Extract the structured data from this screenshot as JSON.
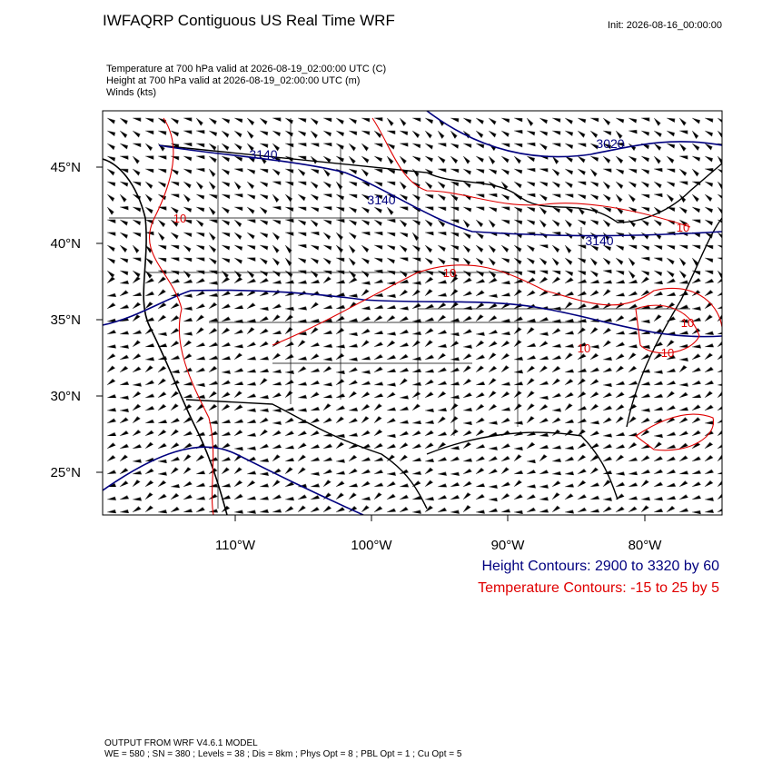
{
  "header": {
    "title": "IWFAQRP Contiguous US Real Time WRF",
    "init": "Init: 2026-08-16_00:00:00",
    "fields": [
      "Temperature at 700 hPa valid at 2026-08-19_02:00:00 UTC   (C)",
      "Height at 700 hPa valid at 2026-08-19_02:00:00 UTC   (m)",
      "Winds   (kts)"
    ]
  },
  "map": {
    "lat_labels": [
      "45°N",
      "40°N",
      "35°N",
      "30°N",
      "25°N"
    ],
    "lon_labels": [
      "110°W",
      "100°W",
      "90°W",
      "80°W"
    ],
    "height_labels": [
      "3140",
      "3140",
      "3140",
      "3020"
    ],
    "temperature_labels": [
      "10",
      "10",
      "10",
      "10",
      "10",
      "10"
    ]
  },
  "legend": {
    "height": "Height Contours: 2900 to 3320 by 60",
    "temperature": "Temperature Contours: -15 to 25 by 5"
  },
  "footer": [
    "OUTPUT FROM WRF V4.6.1 MODEL",
    "WE = 580 ; SN = 380 ; Levels = 38 ; Dis = 8km ; Phys Opt = 8 ; PBL Opt = 1 ; Cu Opt = 5"
  ]
}
